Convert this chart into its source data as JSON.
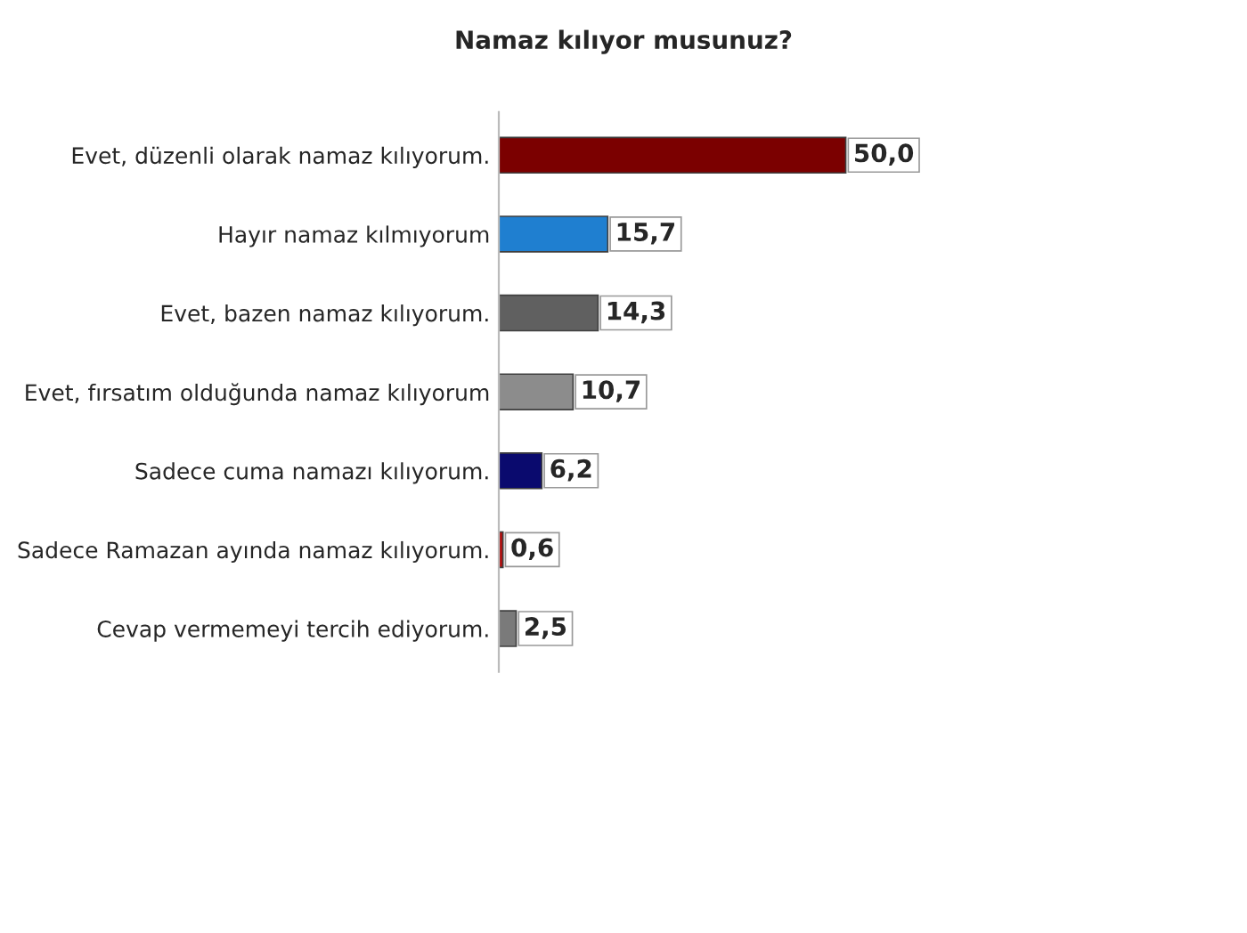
{
  "chart_data": {
    "type": "bar",
    "orientation": "horizontal",
    "title": "Namaz kılıyor musunuz?",
    "categories": [
      "Evet, düzenli olarak namaz kılıyorum.",
      "Hayır namaz kılmıyorum",
      "Evet, bazen namaz kılıyorum.",
      "Evet, fırsatım olduğunda namaz kılıyorum",
      "Sadece cuma namazı kılıyorum.",
      "Sadece Ramazan ayında namaz kılıyorum.",
      "Cevap vermemeyi tercih ediyorum."
    ],
    "values": [
      50.0,
      15.7,
      14.3,
      10.7,
      6.2,
      0.6,
      2.5
    ],
    "value_labels": [
      "50,0",
      "15,7",
      "14,3",
      "10,7",
      "6,2",
      "0,6",
      "2,5"
    ],
    "colors": [
      "#7b0000",
      "#1f7fd0",
      "#606060",
      "#8c8c8c",
      "#0a0a6e",
      "#b01010",
      "#7a7a7a"
    ]
  }
}
